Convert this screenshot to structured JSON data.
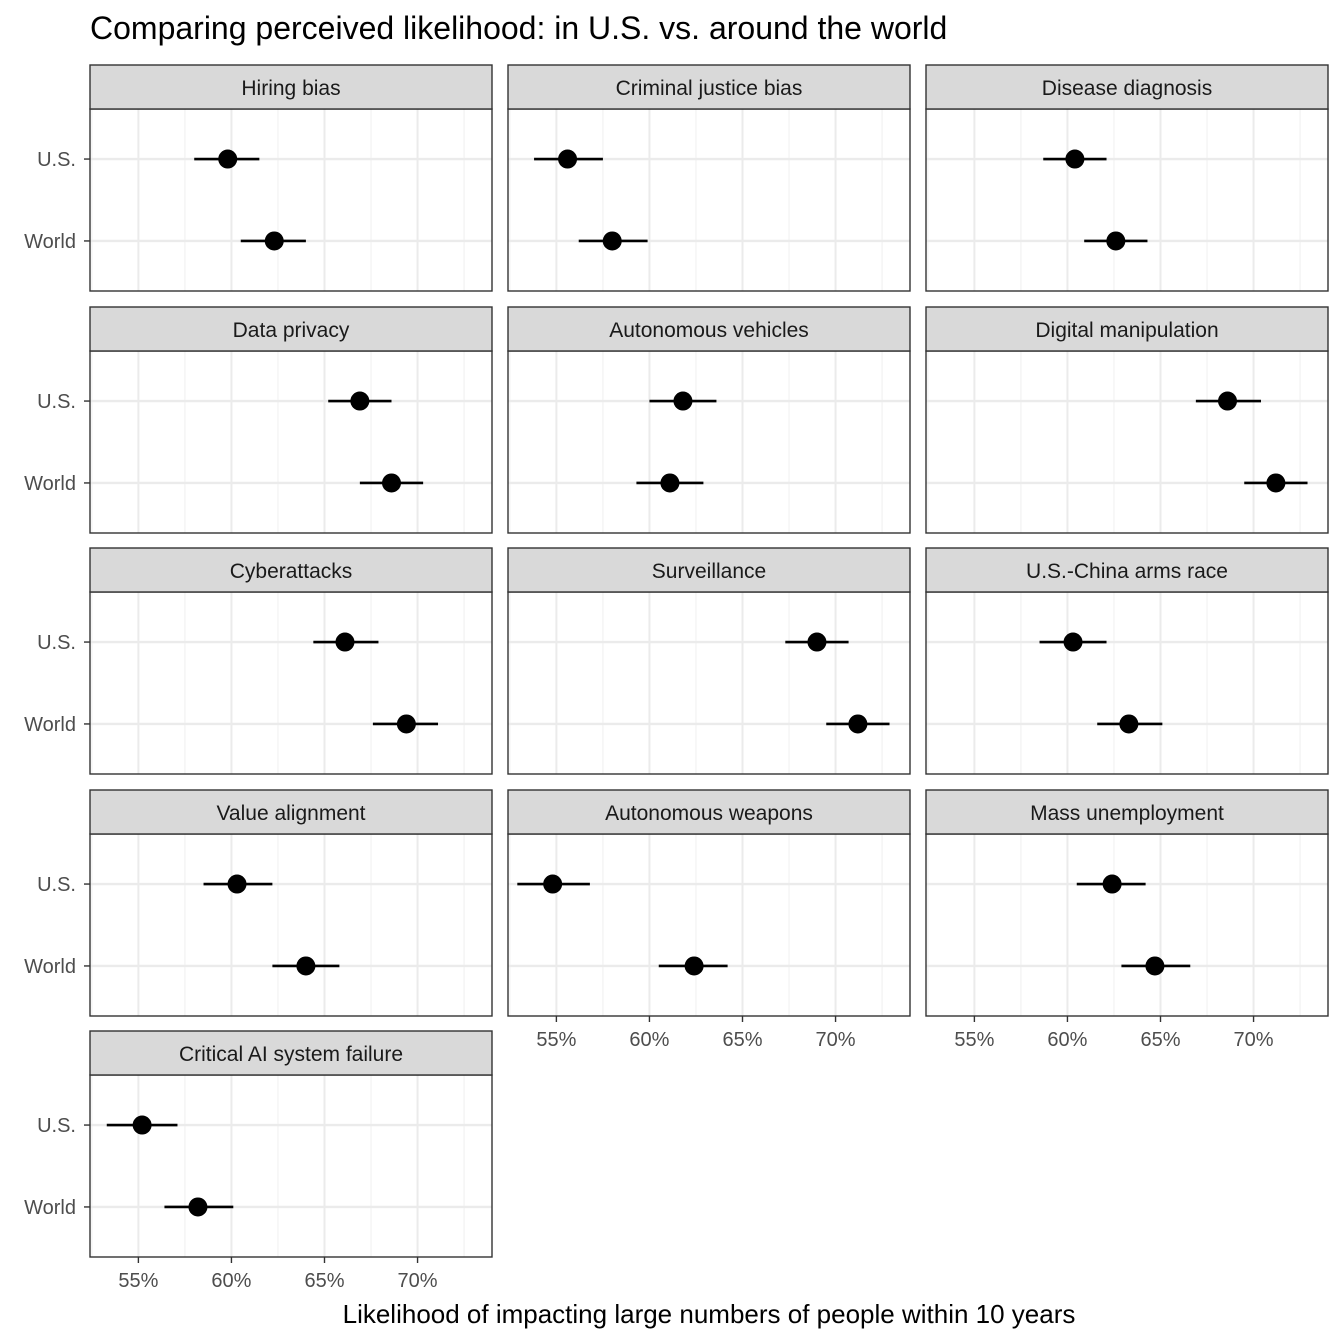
{
  "chart_data": {
    "type": "scatter",
    "title": "Comparing perceived likelihood: in U.S. vs. around the world",
    "xlabel": "Likelihood of impacting large numbers of people within 10 years",
    "ylabel": "",
    "groups": [
      "U.S.",
      "World"
    ],
    "x_ticks": [
      55,
      60,
      65,
      70
    ],
    "x_tick_labels": [
      "55%",
      "60%",
      "65%",
      "70%"
    ],
    "xlim": [
      52.4,
      74.0
    ],
    "x_unit": "percent",
    "grid": true,
    "error_bars": "interval",
    "panels": [
      {
        "name": "Hiring bias",
        "points": [
          {
            "group": "U.S.",
            "value": 59.8,
            "low": 58.0,
            "high": 61.5
          },
          {
            "group": "World",
            "value": 62.3,
            "low": 60.5,
            "high": 64.0
          }
        ]
      },
      {
        "name": "Criminal justice bias",
        "points": [
          {
            "group": "U.S.",
            "value": 55.6,
            "low": 53.8,
            "high": 57.5
          },
          {
            "group": "World",
            "value": 58.0,
            "low": 56.2,
            "high": 59.9
          }
        ]
      },
      {
        "name": "Disease diagnosis",
        "points": [
          {
            "group": "U.S.",
            "value": 60.4,
            "low": 58.7,
            "high": 62.1
          },
          {
            "group": "World",
            "value": 62.6,
            "low": 60.9,
            "high": 64.3
          }
        ]
      },
      {
        "name": "Data privacy",
        "points": [
          {
            "group": "U.S.",
            "value": 66.9,
            "low": 65.2,
            "high": 68.6
          },
          {
            "group": "World",
            "value": 68.6,
            "low": 66.9,
            "high": 70.3
          }
        ]
      },
      {
        "name": "Autonomous vehicles",
        "points": [
          {
            "group": "U.S.",
            "value": 61.8,
            "low": 60.0,
            "high": 63.6
          },
          {
            "group": "World",
            "value": 61.1,
            "low": 59.3,
            "high": 62.9
          }
        ]
      },
      {
        "name": "Digital manipulation",
        "points": [
          {
            "group": "U.S.",
            "value": 68.6,
            "low": 66.9,
            "high": 70.4
          },
          {
            "group": "World",
            "value": 71.2,
            "low": 69.5,
            "high": 72.9
          }
        ]
      },
      {
        "name": "Cyberattacks",
        "points": [
          {
            "group": "U.S.",
            "value": 66.1,
            "low": 64.4,
            "high": 67.9
          },
          {
            "group": "World",
            "value": 69.4,
            "low": 67.6,
            "high": 71.1
          }
        ]
      },
      {
        "name": "Surveillance",
        "points": [
          {
            "group": "U.S.",
            "value": 69.0,
            "low": 67.3,
            "high": 70.7
          },
          {
            "group": "World",
            "value": 71.2,
            "low": 69.5,
            "high": 72.9
          }
        ]
      },
      {
        "name": "U.S.-China arms race",
        "points": [
          {
            "group": "U.S.",
            "value": 60.3,
            "low": 58.5,
            "high": 62.1
          },
          {
            "group": "World",
            "value": 63.3,
            "low": 61.6,
            "high": 65.1
          }
        ]
      },
      {
        "name": "Value alignment",
        "points": [
          {
            "group": "U.S.",
            "value": 60.3,
            "low": 58.5,
            "high": 62.2
          },
          {
            "group": "World",
            "value": 64.0,
            "low": 62.2,
            "high": 65.8
          }
        ]
      },
      {
        "name": "Autonomous weapons",
        "points": [
          {
            "group": "U.S.",
            "value": 54.8,
            "low": 52.9,
            "high": 56.8
          },
          {
            "group": "World",
            "value": 62.4,
            "low": 60.5,
            "high": 64.2
          }
        ]
      },
      {
        "name": "Mass unemployment",
        "points": [
          {
            "group": "U.S.",
            "value": 62.4,
            "low": 60.5,
            "high": 64.2
          },
          {
            "group": "World",
            "value": 64.7,
            "low": 62.9,
            "high": 66.6
          }
        ]
      },
      {
        "name": "Critical AI system failure",
        "points": [
          {
            "group": "U.S.",
            "value": 55.2,
            "low": 53.3,
            "high": 57.1
          },
          {
            "group": "World",
            "value": 58.2,
            "low": 56.4,
            "high": 60.1
          }
        ]
      }
    ],
    "colors": {
      "point": "#000000",
      "strip_fill": "#d9d9d9",
      "strip_border": "#333333",
      "panel_border": "#333333",
      "grid_major": "#ebebeb",
      "grid_minor": "#f2f2f2",
      "tick_label": "#4d4d4d"
    }
  }
}
